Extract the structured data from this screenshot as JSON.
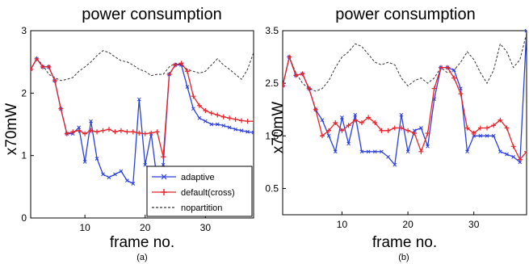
{
  "colors": {
    "adaptive": "#2a3fe0",
    "default": "#e8232a",
    "nopartition": "#333333",
    "axis": "#000000"
  },
  "chart_data": [
    {
      "panel_label": "(a)",
      "type": "line",
      "title": "power consumption",
      "xlabel": "frame no.",
      "ylabel": "x70mW",
      "xlim": [
        1,
        38
      ],
      "ylim": [
        0,
        3
      ],
      "xticks": [
        10,
        20,
        30
      ],
      "yticks": [
        0,
        1,
        2,
        3
      ],
      "yticklabels": [
        "0",
        "1",
        "2",
        "3"
      ],
      "grid": false,
      "legend_position": "bottom-center",
      "series": [
        {
          "name": "adaptive",
          "key": "adaptive",
          "style": "solid",
          "marker": "x",
          "x": [
            1,
            2,
            3,
            4,
            5,
            6,
            7,
            8,
            9,
            10,
            11,
            12,
            13,
            14,
            15,
            16,
            17,
            18,
            19,
            20,
            21,
            22,
            23,
            24,
            25,
            26,
            27,
            28,
            29,
            30,
            31,
            32,
            33,
            34,
            35,
            36,
            37,
            38
          ],
          "y": [
            2.38,
            2.55,
            2.42,
            2.42,
            2.2,
            1.75,
            1.35,
            1.35,
            1.45,
            0.9,
            1.55,
            0.95,
            0.7,
            0.65,
            0.7,
            0.75,
            0.6,
            0.55,
            1.9,
            0.85,
            1.35,
            0.6,
            0.85,
            2.3,
            2.45,
            2.45,
            2.1,
            1.75,
            1.6,
            1.55,
            1.5,
            1.5,
            1.48,
            1.45,
            1.42,
            1.4,
            1.38,
            1.37
          ]
        },
        {
          "name": "default(cross)",
          "key": "default",
          "style": "solid",
          "marker": "+",
          "x": [
            1,
            2,
            3,
            4,
            5,
            6,
            7,
            8,
            9,
            10,
            11,
            12,
            13,
            14,
            15,
            16,
            17,
            18,
            19,
            20,
            21,
            22,
            23,
            24,
            25,
            26,
            27,
            28,
            29,
            30,
            31,
            32,
            33,
            34,
            35,
            36,
            37,
            38
          ],
          "y": [
            2.38,
            2.55,
            2.42,
            2.42,
            2.2,
            1.75,
            1.35,
            1.38,
            1.4,
            1.35,
            1.4,
            1.38,
            1.4,
            1.42,
            1.38,
            1.4,
            1.38,
            1.38,
            1.36,
            1.35,
            1.36,
            1.38,
            0.98,
            2.3,
            2.45,
            2.48,
            2.35,
            1.95,
            1.8,
            1.72,
            1.68,
            1.65,
            1.62,
            1.6,
            1.58,
            1.56,
            1.55,
            1.55
          ]
        },
        {
          "name": "nopartition",
          "key": "nopartition",
          "style": "dashed",
          "marker": "none",
          "x": [
            1,
            2,
            3,
            4,
            5,
            6,
            7,
            8,
            9,
            10,
            11,
            12,
            13,
            14,
            15,
            16,
            17,
            18,
            19,
            20,
            21,
            22,
            23,
            24,
            25,
            26,
            27,
            28,
            29,
            30,
            31,
            32,
            33,
            34,
            35,
            36,
            37,
            38
          ],
          "y": [
            2.38,
            2.55,
            2.45,
            2.3,
            2.25,
            2.2,
            2.22,
            2.25,
            2.35,
            2.42,
            2.5,
            2.6,
            2.68,
            2.65,
            2.58,
            2.52,
            2.5,
            2.45,
            2.38,
            2.35,
            2.28,
            2.3,
            2.3,
            2.42,
            2.48,
            2.45,
            2.38,
            2.35,
            2.32,
            2.35,
            2.45,
            2.55,
            2.45,
            2.38,
            2.3,
            2.22,
            2.38,
            2.65
          ]
        }
      ]
    },
    {
      "panel_label": "(b)",
      "type": "line",
      "title": "power consumption",
      "xlabel": "frame no.",
      "ylabel": "x70mW",
      "xlim": [
        1,
        38
      ],
      "ylim": [
        0,
        3.5
      ],
      "xticks": [
        10,
        20,
        30
      ],
      "yticks": [
        0.5,
        1.5,
        2.5,
        3.5
      ],
      "yticklabels": [
        "0.5",
        "1.5",
        "2.5",
        "3.5"
      ],
      "grid": false,
      "series": [
        {
          "name": "adaptive",
          "key": "adaptive",
          "style": "solid",
          "marker": "x",
          "x": [
            1,
            2,
            3,
            4,
            5,
            6,
            7,
            8,
            9,
            10,
            11,
            12,
            13,
            14,
            15,
            16,
            17,
            18,
            19,
            20,
            21,
            22,
            23,
            24,
            25,
            26,
            27,
            28,
            29,
            30,
            31,
            32,
            33,
            34,
            35,
            36,
            37,
            38
          ],
          "y": [
            2.45,
            3.0,
            2.65,
            2.68,
            2.4,
            2.0,
            1.8,
            1.5,
            1.2,
            1.85,
            1.35,
            1.9,
            1.2,
            1.2,
            1.2,
            1.2,
            1.1,
            0.95,
            1.9,
            1.2,
            1.6,
            1.65,
            1.3,
            2.2,
            2.8,
            2.8,
            2.75,
            2.4,
            1.2,
            1.5,
            1.5,
            1.5,
            1.5,
            1.2,
            1.15,
            1.1,
            1.0,
            3.5
          ]
        },
        {
          "name": "default(cross)",
          "key": "default",
          "style": "solid",
          "marker": "+",
          "x": [
            1,
            2,
            3,
            4,
            5,
            6,
            7,
            8,
            9,
            10,
            11,
            12,
            13,
            14,
            15,
            16,
            17,
            18,
            19,
            20,
            21,
            22,
            23,
            24,
            25,
            26,
            27,
            28,
            29,
            30,
            31,
            32,
            33,
            34,
            35,
            36,
            37,
            38
          ],
          "y": [
            2.45,
            3.0,
            2.65,
            2.68,
            2.4,
            2.0,
            1.5,
            1.6,
            1.75,
            1.6,
            1.7,
            1.8,
            1.75,
            1.85,
            1.75,
            1.6,
            1.6,
            1.65,
            1.65,
            1.6,
            1.55,
            1.2,
            1.55,
            2.4,
            2.8,
            2.8,
            2.6,
            2.3,
            1.65,
            1.55,
            1.65,
            1.65,
            1.7,
            1.8,
            1.65,
            1.3,
            1.05,
            1.2
          ]
        },
        {
          "name": "nopartition",
          "key": "nopartition",
          "style": "dashed",
          "marker": "none",
          "x": [
            1,
            2,
            3,
            4,
            5,
            6,
            7,
            8,
            9,
            10,
            11,
            12,
            13,
            14,
            15,
            16,
            17,
            18,
            19,
            20,
            21,
            22,
            23,
            24,
            25,
            26,
            27,
            28,
            29,
            30,
            31,
            32,
            33,
            34,
            35,
            36,
            37,
            38
          ],
          "y": [
            2.45,
            3.0,
            2.7,
            2.5,
            2.4,
            2.35,
            2.4,
            2.55,
            2.8,
            3.0,
            3.1,
            3.25,
            3.2,
            3.05,
            2.9,
            2.85,
            2.9,
            2.85,
            2.6,
            2.45,
            2.55,
            2.6,
            2.5,
            2.6,
            2.8,
            2.7,
            2.75,
            2.9,
            3.1,
            2.95,
            2.7,
            2.5,
            2.75,
            3.25,
            3.1,
            2.8,
            2.95,
            3.45
          ]
        }
      ]
    }
  ]
}
